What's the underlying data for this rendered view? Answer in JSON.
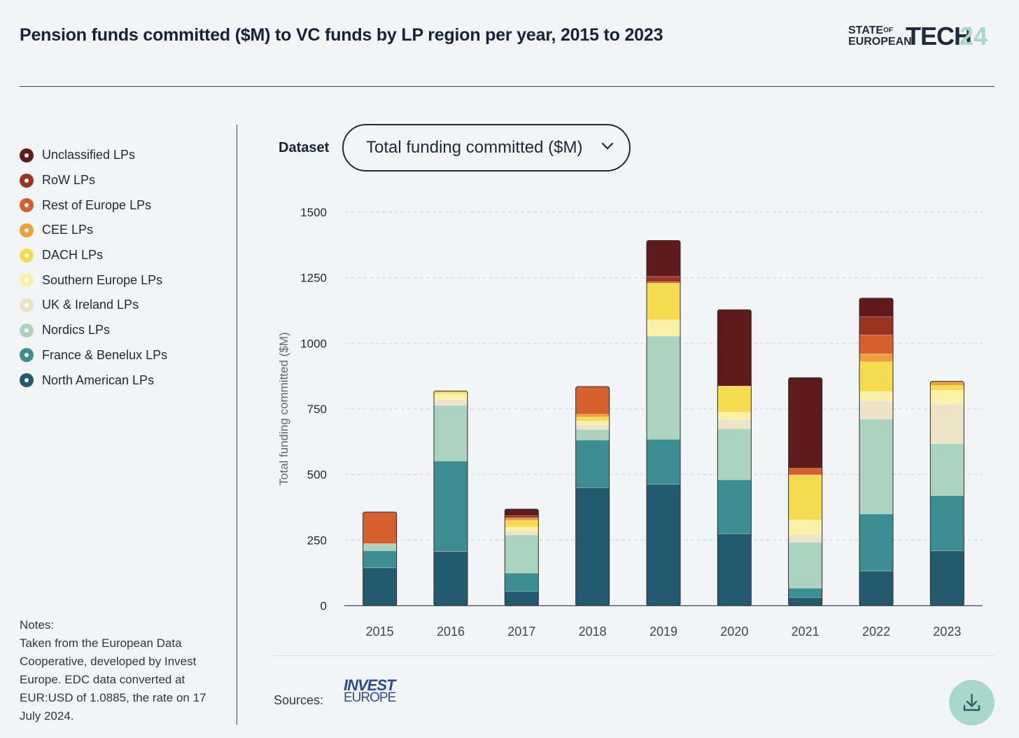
{
  "header": {
    "title": "Pension funds committed ($M) to VC funds by LP region per year, 2015 to 2023",
    "logo_line1": "STATE",
    "logo_of": "OF",
    "logo_line2": "EUROPEAN",
    "logo_big": "TECH",
    "logo_year": "24"
  },
  "legend": [
    {
      "label": "Unclassified LPs",
      "color": "#5e1b1a"
    },
    {
      "label": "RoW LPs",
      "color": "#9b3322"
    },
    {
      "label": "Rest of Europe LPs",
      "color": "#d65f2b"
    },
    {
      "label": "CEE LPs",
      "color": "#eda03a"
    },
    {
      "label": "DACH LPs",
      "color": "#f7db4f"
    },
    {
      "label": "Southern Europe LPs",
      "color": "#fbf0a5"
    },
    {
      "label": "UK & Ireland LPs",
      "color": "#ede4c8"
    },
    {
      "label": "Nordics LPs",
      "color": "#abd3c0"
    },
    {
      "label": "France & Benelux LPs",
      "color": "#3d8e93"
    },
    {
      "label": "North American LPs",
      "color": "#245a6e"
    }
  ],
  "notes": {
    "heading": "Notes:",
    "text": "Taken from the European Data Cooperative, developed by Invest Europe. EDC data converted at EUR:USD of 1.0885, the rate on 17 July 2024."
  },
  "controls": {
    "dataset_label": "Dataset",
    "dataset_value": "Total funding committed ($M)"
  },
  "footer": {
    "sources_label": "Sources:",
    "invest_logo_line1": "INVEST",
    "invest_logo_line2": "EUROPE"
  },
  "chart_data": {
    "type": "bar",
    "stacked": true,
    "title": "Pension funds committed ($M) to VC funds by LP region per year, 2015 to 2023",
    "xlabel": "",
    "ylabel": "Total funding committed ($M)",
    "ylim": [
      0,
      1500
    ],
    "yticks": [
      0,
      250,
      500,
      750,
      1000,
      1250,
      1500
    ],
    "grid": true,
    "categories": [
      "2015",
      "2016",
      "2017",
      "2018",
      "2019",
      "2020",
      "2021",
      "2022",
      "2023"
    ],
    "series": [
      {
        "name": "North American LPs",
        "color": "#245a6e",
        "values": [
          145,
          207,
          55,
          450,
          463,
          275,
          32,
          133,
          210
        ]
      },
      {
        "name": "France & Benelux LPs",
        "color": "#3d8e93",
        "values": [
          65,
          345,
          70,
          182,
          172,
          205,
          35,
          217,
          210
        ]
      },
      {
        "name": "Nordics LPs",
        "color": "#abd3c0",
        "values": [
          27,
          212,
          145,
          40,
          393,
          195,
          175,
          362,
          198
        ]
      },
      {
        "name": "UK & Ireland LPs",
        "color": "#ede4c8",
        "values": [
          0,
          22,
          15,
          18,
          0,
          35,
          30,
          70,
          152
        ]
      },
      {
        "name": "Southern Europe LPs",
        "color": "#fbf0a5",
        "values": [
          0,
          22,
          15,
          15,
          62,
          28,
          55,
          35,
          52
        ]
      },
      {
        "name": "DACH LPs",
        "color": "#f7db4f",
        "values": [
          0,
          8,
          25,
          15,
          140,
          97,
          172,
          113,
          18
        ]
      },
      {
        "name": "CEE LPs",
        "color": "#eda03a",
        "values": [
          0,
          2,
          10,
          10,
          0,
          3,
          0,
          30,
          15
        ]
      },
      {
        "name": "Rest of Europe LPs",
        "color": "#d65f2b",
        "values": [
          120,
          0,
          0,
          105,
          5,
          0,
          25,
          72,
          0
        ]
      },
      {
        "name": "RoW LPs",
        "color": "#9b3322",
        "values": [
          0,
          0,
          8,
          0,
          20,
          0,
          0,
          70,
          0
        ]
      },
      {
        "name": "Unclassified LPs",
        "color": "#5e1b1a",
        "values": [
          0,
          0,
          25,
          0,
          137,
          290,
          345,
          70,
          0
        ]
      }
    ]
  }
}
